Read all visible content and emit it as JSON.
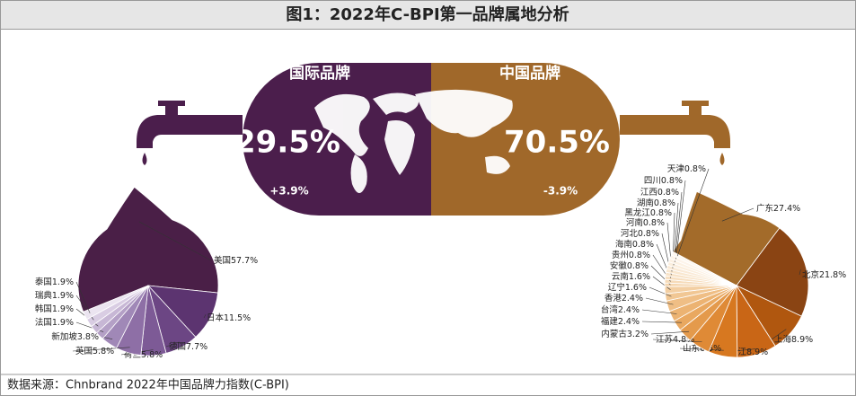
{
  "title": "图1：2022年C-BPI第一品牌属地分析",
  "source": "数据来源：Chnbrand 2022年中国品牌力指数(C-BPI)",
  "banner": {
    "international": {
      "label": "国际品牌",
      "share": "29.5%",
      "change": "+3.9%"
    },
    "china": {
      "label": "中国品牌",
      "share": "70.5%",
      "change": "-3.9%"
    }
  },
  "chart_data": [
    {
      "type": "pie",
      "categories": [
        "美国",
        "日本",
        "德国",
        "荷兰",
        "英国",
        "新加坡",
        "法国",
        "韩国",
        "瑞典",
        "泰国"
      ],
      "values": [
        57.7,
        11.5,
        7.7,
        5.8,
        5.8,
        3.8,
        1.9,
        1.9,
        1.9,
        1.9
      ],
      "value_labels": [
        "57.7%",
        "11.5%",
        "7.7%",
        "5.8%",
        "5.8%",
        "3.8%",
        "1.9%",
        "1.9%",
        "1.9%",
        "1.9%"
      ],
      "colors": [
        "#4a1f47",
        "#5c3470",
        "#6c4684",
        "#7d5a96",
        "#8e6fa6",
        "#a088b7",
        "#b4a0c6",
        "#c7b7d5",
        "#d9cde3",
        "#ebe4f0"
      ]
    },
    {
      "type": "pie",
      "categories": [
        "广东",
        "北京",
        "上海",
        "浙江",
        "山东",
        "江苏",
        "内蒙古",
        "福建",
        "台湾",
        "香港",
        "辽宁",
        "云南",
        "安徽",
        "贵州",
        "海南",
        "河北",
        "河南",
        "黑龙江",
        "湖南",
        "江西",
        "四川",
        "天津"
      ],
      "values": [
        27.4,
        21.8,
        8.9,
        8.9,
        6.5,
        4.8,
        3.2,
        2.4,
        2.4,
        2.4,
        1.6,
        1.6,
        0.8,
        0.8,
        0.8,
        0.8,
        0.8,
        0.8,
        0.8,
        0.8,
        0.8,
        0.8
      ],
      "value_labels": [
        "27.4%",
        "21.8%",
        "8.9%",
        "8.9%",
        "6.5%",
        "4.8%",
        "3.2%",
        "2.4%",
        "2.4%",
        "2.4%",
        "1.6%",
        "1.6%",
        "0.8%",
        "0.8%",
        "0.8%",
        "0.8%",
        "0.8%",
        "0.8%",
        "0.8%",
        "0.8%",
        "0.8%",
        "0.8%"
      ],
      "colors": [
        "#a36b2a",
        "#8a4413",
        "#b0570f",
        "#c96616",
        "#d77820",
        "#df8a36",
        "#e49a4c",
        "#e9a860",
        "#ecb372",
        "#efbe85",
        "#f1c794",
        "#f3cfa3",
        "#f5d6b0",
        "#f6dbb9",
        "#f7dfc1",
        "#f8e3c8",
        "#f9e7cf",
        "#faead6",
        "#fbeedd",
        "#fcf1e3",
        "#fdf4ea",
        "#fef8f1"
      ]
    }
  ]
}
